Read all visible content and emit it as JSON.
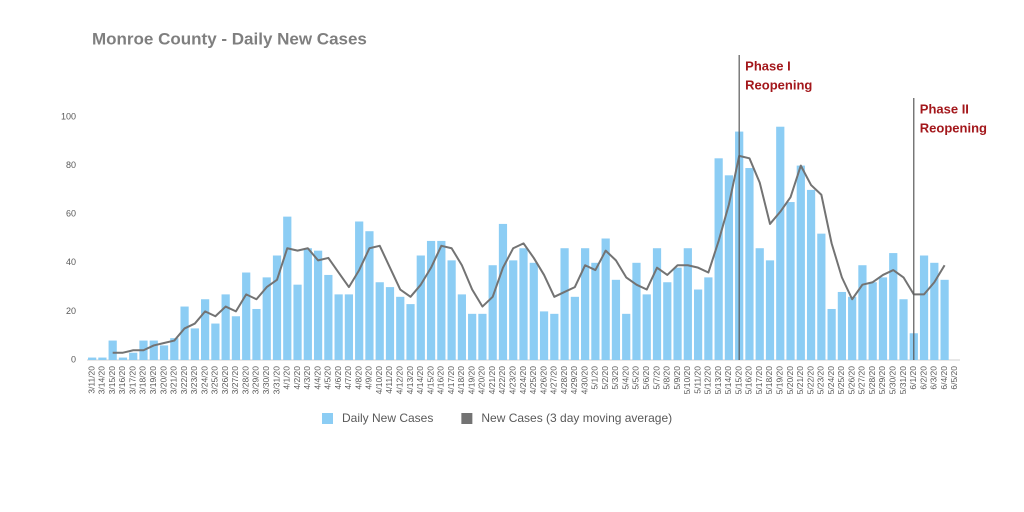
{
  "chart_data": {
    "type": "bar",
    "title": "Monroe County - Daily New Cases",
    "categories": [
      "3/11/20",
      "3/14/20",
      "3/15/20",
      "3/16/20",
      "3/17/20",
      "3/18/20",
      "3/19/20",
      "3/20/20",
      "3/21/20",
      "3/22/20",
      "3/23/20",
      "3/24/20",
      "3/25/20",
      "3/26/20",
      "3/27/20",
      "3/28/20",
      "3/29/20",
      "3/30/20",
      "3/31/20",
      "4/1/20",
      "4/2/20",
      "4/3/20",
      "4/4/20",
      "4/5/20",
      "4/6/20",
      "4/7/20",
      "4/8/20",
      "4/9/20",
      "4/10/20",
      "4/11/20",
      "4/12/20",
      "4/13/20",
      "4/14/20",
      "4/15/20",
      "4/16/20",
      "4/17/20",
      "4/18/20",
      "4/19/20",
      "4/20/20",
      "4/21/20",
      "4/22/20",
      "4/23/20",
      "4/24/20",
      "4/25/20",
      "4/26/20",
      "4/27/20",
      "4/28/20",
      "4/29/20",
      "4/30/20",
      "5/1/20",
      "5/2/20",
      "5/3/20",
      "5/4/20",
      "5/5/20",
      "5/6/20",
      "5/7/20",
      "5/8/20",
      "5/9/20",
      "5/10/20",
      "5/11/20",
      "5/12/20",
      "5/13/20",
      "5/14/20",
      "5/15/20",
      "5/16/20",
      "5/17/20",
      "5/18/20",
      "5/19/20",
      "5/20/20",
      "5/21/20",
      "5/22/20",
      "5/23/20",
      "5/24/20",
      "5/25/20",
      "5/26/20",
      "5/27/20",
      "5/28/20",
      "5/29/20",
      "5/30/20",
      "5/31/20",
      "6/1/20",
      "6/2/20",
      "6/3/20",
      "6/4/20",
      "6/5/20"
    ],
    "series": [
      {
        "name": "Daily New Cases",
        "type": "bar",
        "color": "#8ccdf4",
        "values": [
          1,
          1,
          8,
          1,
          3,
          8,
          8,
          6,
          9,
          22,
          13,
          25,
          15,
          27,
          18,
          36,
          21,
          34,
          43,
          59,
          31,
          46,
          45,
          35,
          27,
          27,
          57,
          53,
          32,
          30,
          26,
          23,
          43,
          49,
          49,
          41,
          27,
          19,
          19,
          39,
          56,
          41,
          46,
          40,
          20,
          19,
          46,
          26,
          46,
          40,
          50,
          33,
          19,
          40,
          27,
          46,
          32,
          38,
          46,
          29,
          34,
          83,
          76,
          94,
          79,
          46,
          41,
          96,
          65,
          80,
          70,
          52,
          21,
          28,
          26,
          39,
          32,
          34,
          44,
          25,
          11,
          43,
          40,
          33,
          null
        ]
      },
      {
        "name": "New Cases (3 day moving average)",
        "type": "line",
        "color": "#737373",
        "values": [
          null,
          null,
          3,
          3,
          4,
          4,
          6,
          7,
          8,
          13,
          15,
          20,
          18,
          22,
          20,
          27,
          25,
          30,
          33,
          46,
          45,
          46,
          41,
          42,
          36,
          30,
          37,
          46,
          47,
          38,
          29,
          26,
          31,
          38,
          47,
          46,
          39,
          29,
          22,
          26,
          38,
          46,
          48,
          42,
          35,
          26,
          28,
          30,
          39,
          37,
          45,
          41,
          34,
          31,
          29,
          38,
          35,
          39,
          39,
          38,
          36,
          49,
          64,
          84,
          83,
          73,
          56,
          61,
          67,
          80,
          72,
          68,
          48,
          34,
          25,
          31,
          32,
          35,
          37,
          34,
          27,
          27,
          32,
          39,
          null
        ]
      }
    ],
    "ylim": [
      0,
      100
    ],
    "yticks": [
      0,
      20,
      40,
      60,
      80,
      100
    ],
    "grid": false,
    "legend": "bottom",
    "annotations": [
      {
        "x": "5/15/20",
        "lines": [
          "Phase I",
          "Reopening"
        ],
        "color": "#a3171b"
      },
      {
        "x": "6/1/20",
        "lines": [
          "Phase II",
          "Reopening"
        ],
        "color": "#a3171b"
      }
    ]
  }
}
